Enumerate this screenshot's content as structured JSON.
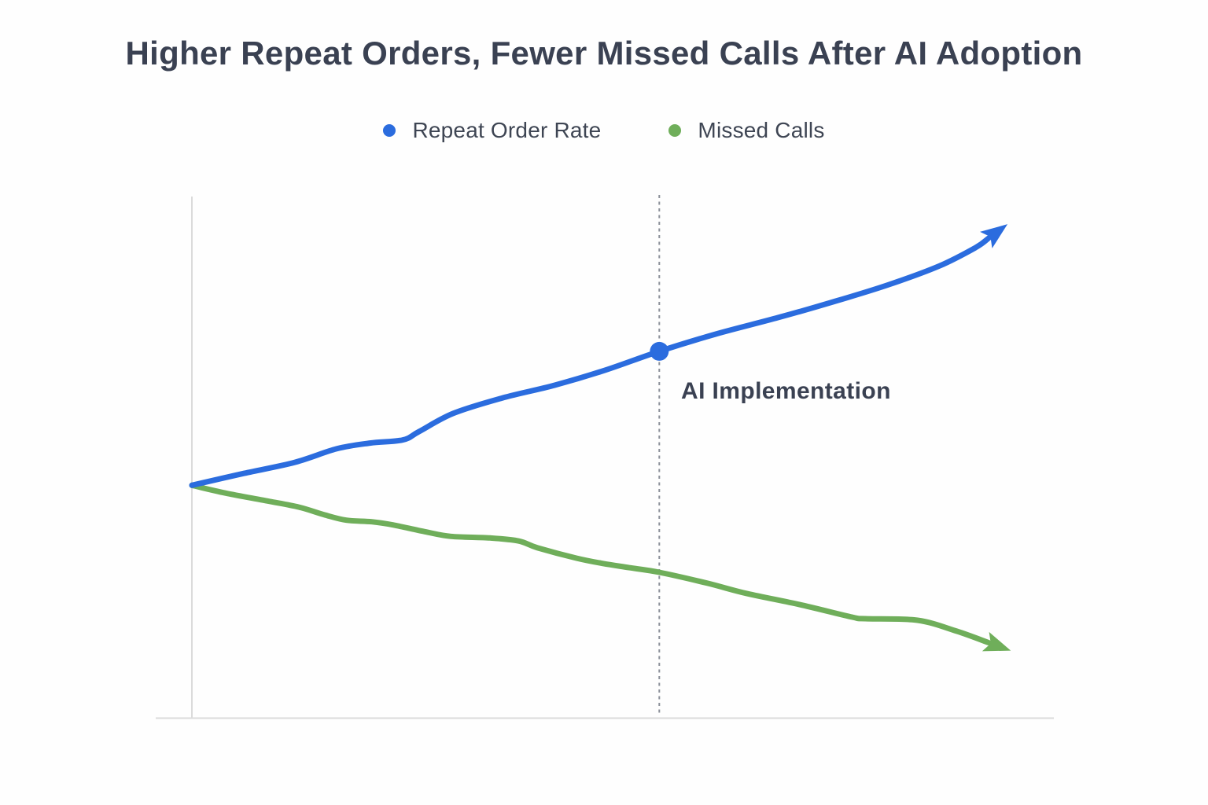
{
  "page": {
    "background": "#FEFEFE"
  },
  "header": {
    "title": "Higher Repeat Orders, Fewer Missed Calls After AI Adoption"
  },
  "legend": {
    "items": [
      {
        "label": "Repeat Order Rate",
        "color": "#2B6CDE"
      },
      {
        "label": "Missed Calls",
        "color": "#6FAE5A"
      }
    ]
  },
  "annotation": {
    "label": "AI Implementation"
  },
  "chart_data": {
    "type": "line",
    "title": "Higher Repeat Orders, Fewer Missed Calls After AI Adoption",
    "xlabel": "",
    "ylabel": "",
    "grid": false,
    "legend_position": "top-center",
    "axes": {
      "x_ticks": [],
      "y_ticks": [],
      "tick_labels_visible": false
    },
    "x_range_percent": [
      0,
      100
    ],
    "y_range_percent": [
      0,
      100
    ],
    "event_line": {
      "label": "AI Implementation",
      "x": 57.2,
      "style": "dashed-vertical"
    },
    "marker": {
      "series": "Repeat Order Rate",
      "x": 57.2,
      "y": 70.3
    },
    "series": [
      {
        "name": "Repeat Order Rate",
        "color": "#2B6CDE",
        "trend": "rising",
        "arrow_end": true,
        "points": [
          [
            0,
            44.6
          ],
          [
            6.4,
            46.9
          ],
          [
            12.6,
            49.0
          ],
          [
            17.7,
            51.6
          ],
          [
            21.8,
            52.7
          ],
          [
            25.8,
            53.3
          ],
          [
            27.8,
            54.9
          ],
          [
            32.0,
            58.4
          ],
          [
            38.1,
            61.4
          ],
          [
            44.4,
            63.8
          ],
          [
            50.6,
            66.7
          ],
          [
            57.2,
            70.3
          ],
          [
            64.1,
            73.6
          ],
          [
            71.8,
            76.8
          ],
          [
            78.5,
            79.8
          ],
          [
            85.3,
            83.1
          ],
          [
            91.5,
            86.7
          ],
          [
            95.9,
            90.2
          ],
          [
            97.5,
            92.0
          ]
        ]
      },
      {
        "name": "Missed Calls",
        "color": "#6FAE5A",
        "trend": "falling",
        "arrow_end": true,
        "points": [
          [
            0,
            44.6
          ],
          [
            4.1,
            43.1
          ],
          [
            9.2,
            41.6
          ],
          [
            13.1,
            40.4
          ],
          [
            16.3,
            38.9
          ],
          [
            18.9,
            37.9
          ],
          [
            22.0,
            37.6
          ],
          [
            24.6,
            37.0
          ],
          [
            28.5,
            35.7
          ],
          [
            31.7,
            34.8
          ],
          [
            36.5,
            34.5
          ],
          [
            40.0,
            33.9
          ],
          [
            42.3,
            32.6
          ],
          [
            47.1,
            30.6
          ],
          [
            50.3,
            29.6
          ],
          [
            53.5,
            28.8
          ],
          [
            57.2,
            27.9
          ],
          [
            63.1,
            25.8
          ],
          [
            68.0,
            23.8
          ],
          [
            74.7,
            21.6
          ],
          [
            80.8,
            19.3
          ],
          [
            82.4,
            19.0
          ],
          [
            88.8,
            18.7
          ],
          [
            93.6,
            16.6
          ],
          [
            97.5,
            14.4
          ]
        ]
      }
    ]
  }
}
